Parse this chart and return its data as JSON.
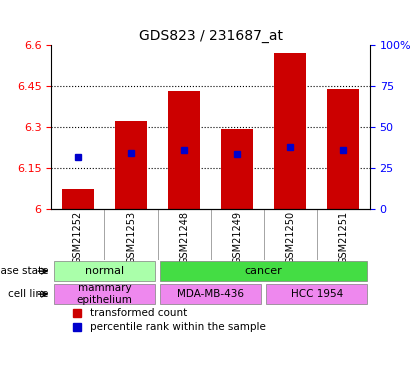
{
  "title": "GDS823 / 231687_at",
  "samples": [
    "GSM21252",
    "GSM21253",
    "GSM21248",
    "GSM21249",
    "GSM21250",
    "GSM21251"
  ],
  "red_bar_tops": [
    6.07,
    6.32,
    6.43,
    6.29,
    6.57,
    6.44
  ],
  "blue_squares": [
    6.19,
    6.205,
    6.215,
    6.2,
    6.225,
    6.215
  ],
  "blue_percentiles": [
    30,
    32,
    33,
    30,
    37,
    33
  ],
  "y_min": 6.0,
  "y_max": 6.6,
  "y_ticks": [
    6.0,
    6.15,
    6.3,
    6.45,
    6.6
  ],
  "y_tick_labels": [
    "6",
    "6.15",
    "6.3",
    "6.45",
    "6.6"
  ],
  "right_y_ticks": [
    0,
    25,
    50,
    75,
    100
  ],
  "right_y_tick_labels": [
    "0",
    "25",
    "50",
    "75",
    "100%"
  ],
  "bar_color": "#cc0000",
  "blue_color": "#0000cc",
  "bar_width": 0.6,
  "disease_state_groups": [
    {
      "label": "normal",
      "cols": [
        0,
        1
      ],
      "color": "#aaffaa"
    },
    {
      "label": "cancer",
      "cols": [
        2,
        3,
        4,
        5
      ],
      "color": "#44dd44"
    }
  ],
  "cell_line_groups": [
    {
      "label": "mammary\nepithelium",
      "cols": [
        0,
        1
      ],
      "color": "#ee88ee"
    },
    {
      "label": "MDA-MB-436",
      "cols": [
        2,
        3
      ],
      "color": "#ee88ee"
    },
    {
      "label": "HCC 1954",
      "cols": [
        4,
        5
      ],
      "color": "#ee88ee"
    }
  ],
  "legend_items": [
    {
      "label": "transformed count",
      "color": "#cc0000",
      "marker": "s"
    },
    {
      "label": "percentile rank within the sample",
      "color": "#0000cc",
      "marker": "s"
    }
  ],
  "bg_color": "#e8e8e8",
  "plot_bg": "#ffffff"
}
